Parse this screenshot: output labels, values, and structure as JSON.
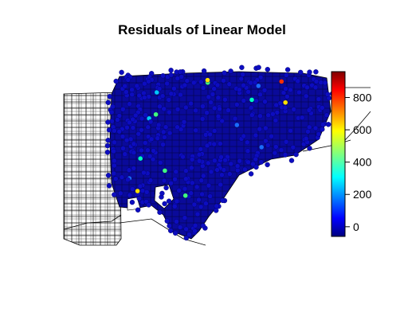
{
  "title": "Residuals of Linear Model",
  "legend": {
    "colormap": "jet",
    "range": [
      -60,
      960
    ],
    "ticks": [
      {
        "label": "800",
        "value": 800
      },
      {
        "label": "600",
        "value": 600
      },
      {
        "label": "400",
        "value": 400
      },
      {
        "label": "200",
        "value": 200
      },
      {
        "label": "0",
        "value": 0
      }
    ]
  },
  "colors": {
    "background": "#ffffff",
    "outline": "#000000",
    "low": "#00008b",
    "high": "#8b0000"
  }
}
